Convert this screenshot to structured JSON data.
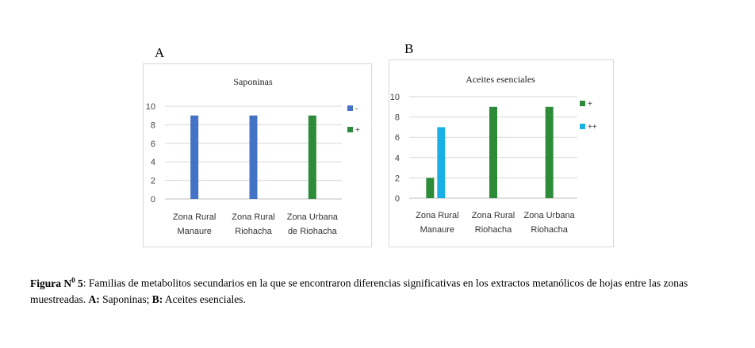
{
  "panels": {
    "a_label": "A",
    "b_label": "B"
  },
  "chart_data": [
    {
      "type": "bar",
      "title": "Saponinas",
      "categories": [
        [
          "Zona Rural",
          "Manaure"
        ],
        [
          "Zona Rural",
          "Riohacha"
        ],
        [
          "Zona Urbana",
          "de Riohacha"
        ]
      ],
      "series": [
        {
          "name": "-",
          "color": "#4472c4",
          "values": [
            9,
            9,
            0
          ]
        },
        {
          "name": "+",
          "color": "#2e8b3a",
          "values": [
            0,
            0,
            9
          ]
        }
      ],
      "yticks": [
        "0",
        "2",
        "4",
        "6",
        "8",
        "10"
      ],
      "ylim": [
        0,
        10
      ],
      "grid": true,
      "legend": "right"
    },
    {
      "type": "bar",
      "title": "Aceites esenciales",
      "categories": [
        [
          "Zona Rural",
          "Manaure"
        ],
        [
          "Zona Rural",
          "Riohacha"
        ],
        [
          "Zona Urbana",
          "Riohacha"
        ]
      ],
      "series": [
        {
          "name": "+",
          "color": "#2e8b3a",
          "values": [
            2,
            9,
            9
          ]
        },
        {
          "name": "++",
          "color": "#1ab0e6",
          "values": [
            7,
            0,
            0
          ]
        }
      ],
      "yticks": [
        "0",
        "2",
        "4",
        "6",
        "8",
        "10"
      ],
      "ylim": [
        0,
        10
      ],
      "grid": true,
      "legend": "right"
    }
  ],
  "caption": {
    "figure_label": "Figura N",
    "figure_sup": "0",
    "figure_num": " 5",
    "text1": ": Familias de metabolitos secundarios en la que se encontraron diferencias significativas en los extractos metanólicos de hojas entre las zonas muestreadas. ",
    "a_label": "A:",
    "a_text": " Saponinas; ",
    "b_label": "B:",
    "b_text": " Aceites esenciales."
  }
}
